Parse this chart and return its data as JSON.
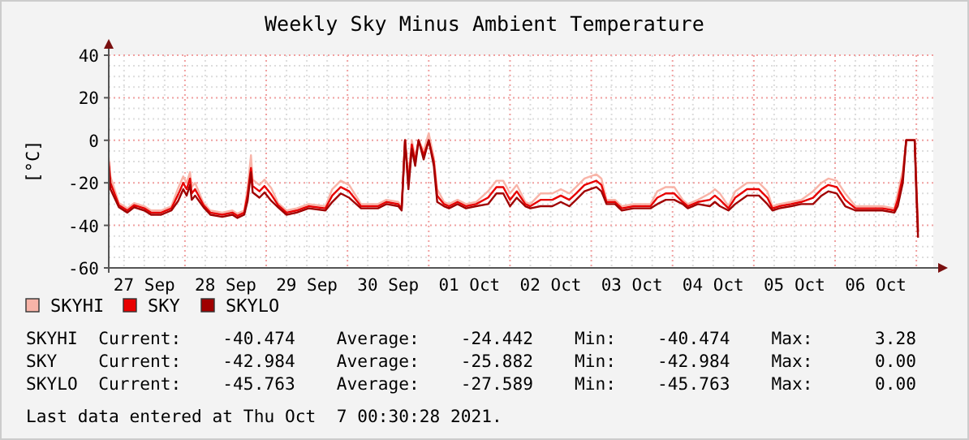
{
  "chart_data": {
    "type": "line",
    "title": "Weekly Sky Minus Ambient Temperature",
    "ylabel": "[°C]",
    "x": [
      "2021-09-27T01:30",
      "2021-09-27T02:00",
      "2021-09-27T04:30",
      "2021-09-27T07:00",
      "2021-09-27T09:00",
      "2021-09-27T12:00",
      "2021-09-27T14:00",
      "2021-09-27T17:00",
      "2021-09-27T20:00",
      "2021-09-27T22:00",
      "2021-09-27T23:30",
      "2021-09-28T00:30",
      "2021-09-28T01:30",
      "2021-09-28T02:00",
      "2021-09-28T03:00",
      "2021-09-28T05:30",
      "2021-09-28T07:30",
      "2021-09-28T11:00",
      "2021-09-28T14:00",
      "2021-09-28T15:30",
      "2021-09-28T17:30",
      "2021-09-28T18:30",
      "2021-09-28T19:30",
      "2021-09-28T20:00",
      "2021-09-28T22:00",
      "2021-09-28T23:30",
      "2021-09-29T01:30",
      "2021-09-29T03:30",
      "2021-09-29T06:00",
      "2021-09-29T09:00",
      "2021-09-29T12:30",
      "2021-09-29T17:30",
      "2021-09-29T19:30",
      "2021-09-29T22:00",
      "2021-09-30T00:30",
      "2021-09-30T04:00",
      "2021-09-30T09:00",
      "2021-09-30T11:30",
      "2021-09-30T15:00",
      "2021-09-30T16:00",
      "2021-09-30T17:00",
      "2021-09-30T18:00",
      "2021-09-30T19:00",
      "2021-09-30T20:00",
      "2021-09-30T21:00",
      "2021-09-30T22:30",
      "2021-10-01T00:00",
      "2021-10-01T01:30",
      "2021-10-01T02:30",
      "2021-10-01T04:30",
      "2021-10-01T06:00",
      "2021-10-01T08:30",
      "2021-10-01T11:00",
      "2021-10-01T14:00",
      "2021-10-01T17:30",
      "2021-10-01T20:00",
      "2021-10-01T22:00",
      "2021-10-02T00:00",
      "2021-10-02T02:00",
      "2021-10-02T04:30",
      "2021-10-02T06:00",
      "2021-10-02T09:00",
      "2021-10-02T12:30",
      "2021-10-02T15:00",
      "2021-10-02T17:30",
      "2021-10-02T19:30",
      "2021-10-02T22:00",
      "2021-10-03T01:30",
      "2021-10-03T03:00",
      "2021-10-03T04:30",
      "2021-10-03T07:00",
      "2021-10-03T09:00",
      "2021-10-03T12:30",
      "2021-10-03T17:30",
      "2021-10-03T19:30",
      "2021-10-03T22:00",
      "2021-10-04T00:30",
      "2021-10-04T03:00",
      "2021-10-04T04:30",
      "2021-10-04T07:30",
      "2021-10-04T11:00",
      "2021-10-04T12:30",
      "2021-10-04T14:00",
      "2021-10-04T16:30",
      "2021-10-04T18:30",
      "2021-10-04T22:00",
      "2021-10-05T01:30",
      "2021-10-05T04:00",
      "2021-10-05T05:30",
      "2021-10-05T07:30",
      "2021-10-05T11:00",
      "2021-10-05T14:00",
      "2021-10-05T17:30",
      "2021-10-05T20:00",
      "2021-10-05T22:00",
      "2021-10-06T00:30",
      "2021-10-06T03:00",
      "2021-10-06T06:00",
      "2021-10-06T09:00",
      "2021-10-06T14:00",
      "2021-10-06T17:30",
      "2021-10-06T18:30",
      "2021-10-06T20:00",
      "2021-10-06T21:00",
      "2021-10-06T23:30",
      "2021-10-07T00:00",
      "2021-10-07T00:30"
    ],
    "series": [
      {
        "name": "SKYHI",
        "color": "#f8b4a8",
        "values": [
          -8,
          -17,
          -29.5,
          -32,
          -29.5,
          -31,
          -33,
          -33,
          -31,
          -22.5,
          -17,
          -20,
          -15,
          -22,
          -20,
          -29.5,
          -33,
          -34,
          -33,
          -34.5,
          -33,
          -22.5,
          -7,
          -18.5,
          -21,
          -18.5,
          -22.5,
          -29.5,
          -33,
          -32,
          -30,
          -31,
          -23,
          -19,
          -21,
          -30,
          -30,
          -28,
          -29,
          -31,
          0,
          -17,
          0,
          -8,
          0,
          -5,
          3.28,
          -8,
          -23,
          -29,
          -30,
          -28,
          -30,
          -29,
          -24,
          -19,
          -19,
          -25,
          -21,
          -29,
          -30,
          -25,
          -25,
          -23,
          -25,
          -22,
          -18,
          -16,
          -18,
          -28,
          -28,
          -31,
          -30,
          -30,
          -24,
          -22,
          -22,
          -28,
          -30,
          -28,
          -25,
          -23,
          -25,
          -31,
          -24,
          -20,
          -20,
          -24,
          -31,
          -30,
          -29,
          -28,
          -24,
          -20,
          -18,
          -19,
          -25,
          -31,
          -31,
          -31,
          -32,
          -25,
          -14,
          0,
          0,
          -19,
          -40.5
        ]
      },
      {
        "name": "SKY",
        "color": "#e80000",
        "values": [
          -10,
          -20,
          -30.5,
          -33,
          -30.5,
          -32,
          -34,
          -34,
          -32,
          -25.5,
          -20,
          -23,
          -18,
          -25,
          -23,
          -30.5,
          -34,
          -35,
          -34,
          -35.5,
          -34,
          -25.5,
          -13,
          -21.5,
          -24,
          -21.5,
          -25.5,
          -30.5,
          -34,
          -33,
          -31,
          -32,
          -26,
          -22,
          -24,
          -31,
          -31,
          -29,
          -30,
          -32,
          0,
          -20,
          -2,
          -10,
          0,
          -7,
          0,
          -10,
          -26,
          -30,
          -31,
          -29,
          -31,
          -30,
          -27,
          -22,
          -22,
          -28,
          -24,
          -30,
          -31,
          -28,
          -28,
          -26,
          -28,
          -25,
          -21,
          -19,
          -21,
          -29,
          -29,
          -32,
          -31,
          -31,
          -27,
          -25,
          -25,
          -29,
          -31,
          -29,
          -28,
          -26,
          -28,
          -32,
          -27,
          -23,
          -23,
          -27,
          -32,
          -31,
          -30,
          -29,
          -27,
          -23,
          -21,
          -22,
          -28,
          -32,
          -32,
          -32,
          -33,
          -28,
          -17,
          0,
          0,
          -22,
          -43
        ]
      },
      {
        "name": "SKYLO",
        "color": "#a00000",
        "values": [
          -12,
          -23,
          -31.5,
          -34,
          -31.5,
          -33,
          -35,
          -35,
          -33,
          -28.5,
          -23,
          -26,
          -21,
          -28,
          -26,
          -31.5,
          -35,
          -36,
          -35,
          -36.5,
          -35,
          -28.5,
          -15,
          -24.5,
          -27,
          -24.5,
          -28.5,
          -31.5,
          -35,
          -34,
          -32,
          -33,
          -29,
          -25,
          -27,
          -32,
          -32,
          -30,
          -31,
          -33,
          0,
          -23,
          -4,
          -12,
          0,
          -9,
          0,
          -12,
          -29,
          -31,
          -32,
          -30,
          -32,
          -31,
          -30,
          -25,
          -25,
          -31,
          -27,
          -31,
          -32,
          -31,
          -31,
          -29,
          -31,
          -28,
          -24,
          -22,
          -24,
          -30,
          -30,
          -33,
          -32,
          -32,
          -30,
          -28,
          -28,
          -30,
          -32,
          -30,
          -31,
          -29,
          -31,
          -33,
          -30,
          -26,
          -26,
          -30,
          -33,
          -32,
          -31,
          -30,
          -30,
          -26,
          -24,
          -25,
          -31,
          -33,
          -33,
          -33,
          -34,
          -31,
          -20,
          0,
          0,
          -25,
          -45.8
        ]
      }
    ],
    "xlim": [
      "2021-09-27T01:30",
      "2021-10-07T05:00"
    ],
    "xticks": [
      {
        "value": "2021-09-27T12:00",
        "label": "27 Sep"
      },
      {
        "value": "2021-09-28T12:00",
        "label": "28 Sep"
      },
      {
        "value": "2021-09-29T12:00",
        "label": "29 Sep"
      },
      {
        "value": "2021-09-30T12:00",
        "label": "30 Sep"
      },
      {
        "value": "2021-10-01T12:00",
        "label": "01 Oct"
      },
      {
        "value": "2021-10-02T12:00",
        "label": "02 Oct"
      },
      {
        "value": "2021-10-03T12:00",
        "label": "03 Oct"
      },
      {
        "value": "2021-10-04T12:00",
        "label": "04 Oct"
      },
      {
        "value": "2021-10-05T12:00",
        "label": "05 Oct"
      },
      {
        "value": "2021-10-06T12:00",
        "label": "06 Oct"
      }
    ],
    "ylim": [
      -60,
      40
    ],
    "yticks": [
      -60,
      -40,
      -20,
      0,
      20,
      40
    ],
    "grid": true,
    "legend": "bottom left",
    "annotations": [
      "SKYHI  Current:    -40.474    Average:    -24.442    Min:    -40.474    Max:      3.28",
      "SKY    Current:    -42.984    Average:    -25.882    Min:    -42.984    Max:      0.00",
      "SKYLO  Current:    -45.763    Average:    -27.589    Min:    -45.763    Max:      0.00",
      "Last data entered at Thu Oct  7 00:30:28 2021."
    ]
  }
}
